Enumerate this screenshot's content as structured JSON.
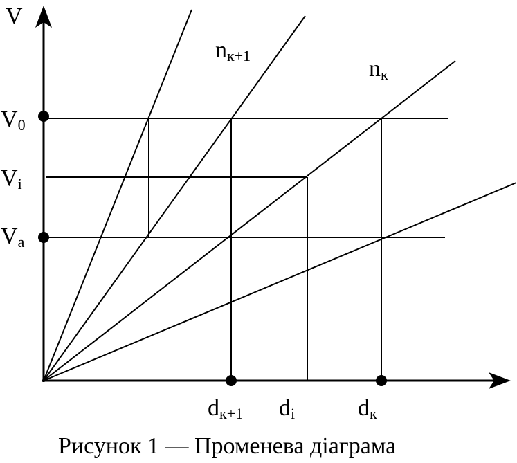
{
  "axes": {
    "y_label": "V"
  },
  "speed_labels": {
    "v0": {
      "main": "V",
      "sub": "0"
    },
    "vi": {
      "main": "V",
      "sub": "i"
    },
    "va": {
      "main": "V",
      "sub": "a"
    }
  },
  "diameter_labels": {
    "dk1": {
      "main": "d",
      "sub": "к+1"
    },
    "di": {
      "main": "d",
      "sub": "i"
    },
    "dk": {
      "main": "d",
      "sub": "к"
    }
  },
  "ray_labels": {
    "nk1": {
      "main": "n",
      "sub": "к+1"
    },
    "nk": {
      "main": "n",
      "sub": "к"
    }
  },
  "caption": "Рисунок 1 — Променева діаграма",
  "colors": {
    "ink": "#000000",
    "background": "#ffffff"
  }
}
